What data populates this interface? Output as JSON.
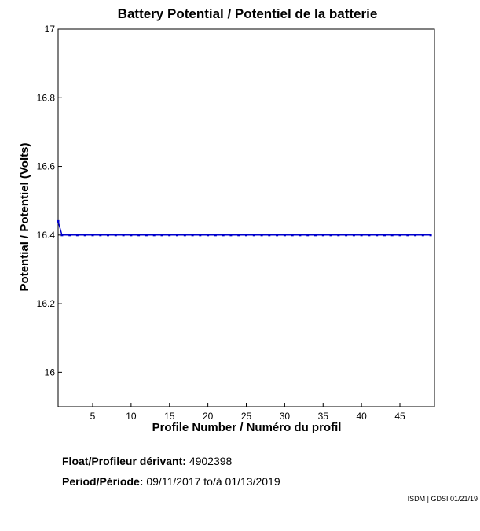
{
  "chart_data": {
    "type": "line",
    "title": "Battery Potential / Potentiel de la batterie",
    "xlabel": "Profile Number / Numéro du profil",
    "ylabel": "Potential / Potentiel (Volts)",
    "xlim": [
      0.5,
      49.5
    ],
    "ylim": [
      15.9,
      17.0
    ],
    "x_ticks": [
      5,
      10,
      15,
      20,
      25,
      30,
      35,
      40,
      45
    ],
    "y_ticks": [
      16.0,
      16.2,
      16.4,
      16.6,
      16.8,
      17.0
    ],
    "y_tick_labels": [
      "16",
      "16.2",
      "16.4",
      "16.6",
      "16.8",
      "17"
    ],
    "series": [
      {
        "x": [
          0.5,
          1,
          2,
          3,
          4,
          5,
          6,
          7,
          8,
          9,
          10,
          11,
          12,
          13,
          14,
          15,
          16,
          17,
          18,
          19,
          20,
          21,
          22,
          23,
          24,
          25,
          26,
          27,
          28,
          29,
          30,
          31,
          32,
          33,
          34,
          35,
          36,
          37,
          38,
          39,
          40,
          41,
          42,
          43,
          44,
          45,
          46,
          47,
          48,
          49
        ],
        "values": [
          16.44,
          16.4,
          16.4,
          16.4,
          16.4,
          16.4,
          16.4,
          16.4,
          16.4,
          16.4,
          16.4,
          16.4,
          16.4,
          16.4,
          16.4,
          16.4,
          16.4,
          16.4,
          16.4,
          16.4,
          16.4,
          16.4,
          16.4,
          16.4,
          16.4,
          16.4,
          16.4,
          16.4,
          16.4,
          16.4,
          16.4,
          16.4,
          16.4,
          16.4,
          16.4,
          16.4,
          16.4,
          16.4,
          16.4,
          16.4,
          16.4,
          16.4,
          16.4,
          16.4,
          16.4,
          16.4,
          16.4,
          16.4,
          16.4,
          16.4
        ],
        "color": "#0000cc"
      }
    ],
    "grid": false
  },
  "info": {
    "float_label": "Float/Profileur dérivant:",
    "float_value": "4902398",
    "period_label": "Period/Période:",
    "period_start": "09/11/2017",
    "period_sep": "to/à",
    "period_end": "01/13/2019"
  },
  "footer": "ISDM | GDSI 01/21/19"
}
